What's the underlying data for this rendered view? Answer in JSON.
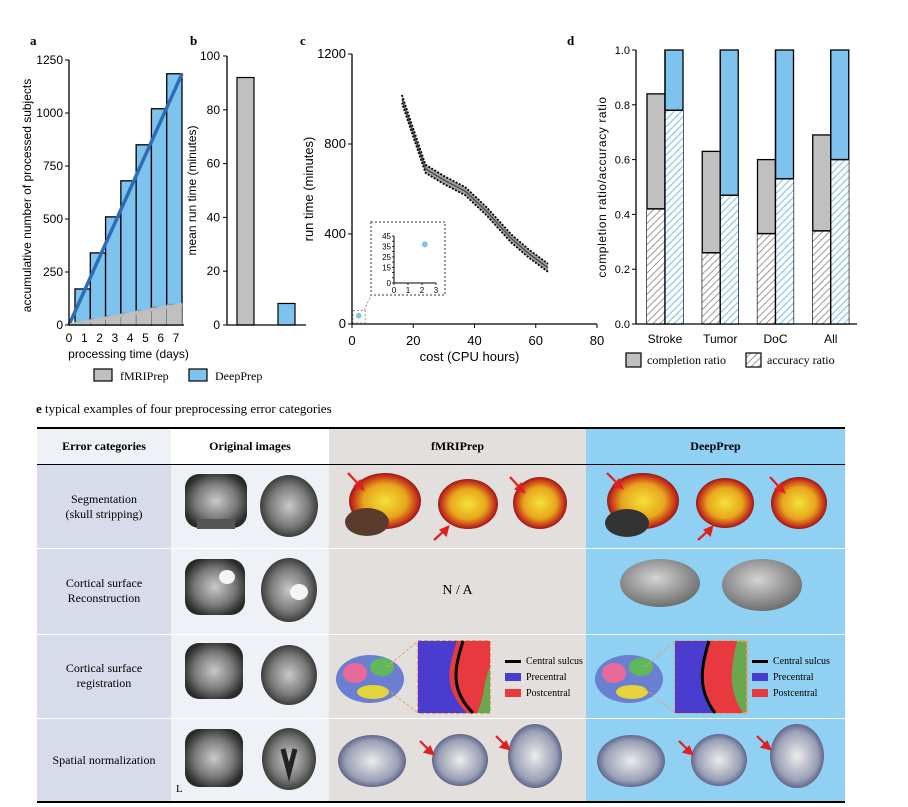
{
  "panels": {
    "a": {
      "label": "a",
      "xlabel": "processing time (days)",
      "ylabel": "accumulative number of processed subjects"
    },
    "b": {
      "label": "b",
      "ylabel": "mean run time (minutes)"
    },
    "c": {
      "label": "c",
      "xlabel": "cost  (CPU hours)",
      "ylabel": "run time (minutes)"
    },
    "d": {
      "label": "d",
      "ylabel": "completion ratio/accuracy ratio"
    }
  },
  "legend_ab": {
    "fmriprep": "fMRIPrep",
    "deepprep": "DeepPrep"
  },
  "legend_d": {
    "completion": "completion ratio",
    "accuracy": "accuracy ratio"
  },
  "colors": {
    "fmriprep": "#c0c0c0",
    "deepprep": "#7ec3ee",
    "fit_line": "#2d6db5",
    "table_blue": "#8fd0f3",
    "table_grey": "#e2dfdc",
    "table_cat": "#d7dbea",
    "table_orig": "#eef2f7"
  },
  "chart_data": [
    {
      "type": "bar",
      "panel": "a",
      "categories": [
        "0",
        "1",
        "2",
        "3",
        "4",
        "5",
        "6",
        "7"
      ],
      "series": [
        {
          "name": "fMRIPrep",
          "values": [
            0,
            14,
            28,
            42,
            56,
            70,
            84,
            98
          ]
        },
        {
          "name": "DeepPrep",
          "values": [
            0,
            170,
            340,
            510,
            680,
            850,
            1020,
            1185
          ]
        }
      ],
      "ylim": [
        0,
        1250
      ],
      "yticks": [
        0,
        250,
        500,
        750,
        1000,
        1250
      ],
      "xticks": [
        "0",
        "1",
        "2",
        "3",
        "4",
        "5",
        "6",
        "7"
      ]
    },
    {
      "type": "bar",
      "panel": "b",
      "categories": [
        "fMRIPrep",
        "DeepPrep"
      ],
      "values": [
        92,
        8
      ],
      "ylim": [
        0,
        100
      ],
      "yticks": [
        0,
        20,
        40,
        60,
        80,
        100
      ]
    },
    {
      "type": "line",
      "panel": "c",
      "x": [
        16.3,
        20,
        24,
        30,
        37,
        44,
        52,
        58,
        64
      ],
      "y": [
        1000,
        850,
        690,
        640,
        590,
        500,
        380,
        310,
        250
      ],
      "band": 18,
      "point": {
        "name": "DeepPrep",
        "x": 2.2,
        "y": 37
      },
      "xlim": [
        0,
        80
      ],
      "ylim": [
        0,
        1200
      ],
      "xticks": [
        0,
        20,
        40,
        60,
        80
      ],
      "yticks": [
        0,
        400,
        800,
        1200
      ],
      "inset": {
        "xticks": [
          0,
          1,
          2,
          3
        ],
        "yticks": [
          0,
          5,
          10,
          15,
          20,
          25,
          30,
          35,
          40,
          45
        ]
      }
    },
    {
      "type": "bar",
      "panel": "d",
      "categories": [
        "Stroke",
        "Tumor",
        "DoC",
        "All"
      ],
      "series": [
        {
          "name": "fMRIPrep completion ratio",
          "values": [
            0.84,
            0.63,
            0.6,
            0.69
          ]
        },
        {
          "name": "fMRIPrep accuracy ratio",
          "values": [
            0.42,
            0.26,
            0.33,
            0.34
          ]
        },
        {
          "name": "DeepPrep completion ratio",
          "values": [
            1.0,
            1.0,
            1.0,
            1.0
          ]
        },
        {
          "name": "DeepPrep accuracy ratio",
          "values": [
            0.78,
            0.47,
            0.53,
            0.6
          ]
        }
      ],
      "ylim": [
        0,
        1.0
      ],
      "yticks": [
        "0.0",
        "0.2",
        "0.4",
        "0.6",
        "0.8",
        "1.0"
      ]
    }
  ],
  "section_e": {
    "letter": "e",
    "title": " typical examples of four preprocessing error categories"
  },
  "table": {
    "headers": [
      "Error categories",
      "Original images",
      "fMRIPrep",
      "DeepPrep"
    ],
    "rows": [
      {
        "category": "Segmentation\n(skull stripping)"
      },
      {
        "category": "Cortical surface\nReconstruction",
        "fmriprep_text": "N / A"
      },
      {
        "category": "Cortical surface\nregistration"
      },
      {
        "category": "Spatial normalization",
        "orientation": "L"
      }
    ],
    "registration_legend": [
      "Central sulcus",
      "Precentral",
      "Postcentral"
    ],
    "registration_colors": [
      "#000000",
      "#4a3ccf",
      "#e8393f"
    ]
  }
}
